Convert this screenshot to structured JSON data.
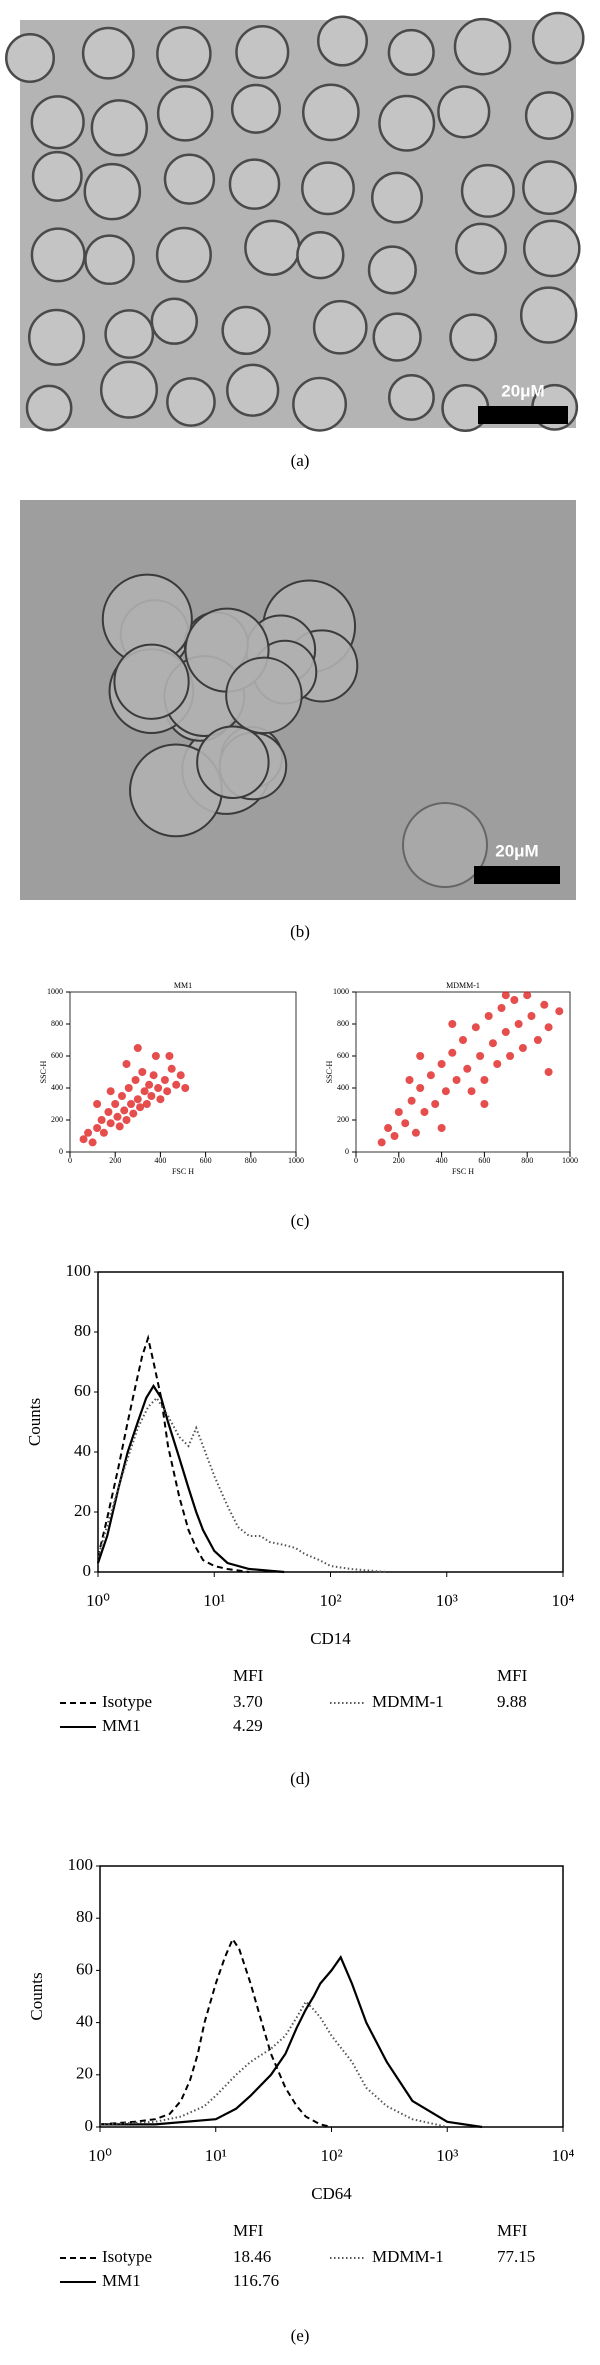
{
  "panel_labels": [
    "(a)",
    "(b)",
    "(c)",
    "(d)",
    "(e)"
  ],
  "scale_bars": [
    "20μM",
    "20μM"
  ],
  "chart_data": [
    {
      "type": "scatter",
      "title": "MM1",
      "xlabel": "FSC H",
      "ylabel": "SSC-H",
      "color": "#e02020",
      "x": [
        60,
        80,
        100,
        120,
        140,
        150,
        170,
        180,
        200,
        210,
        220,
        230,
        240,
        250,
        260,
        270,
        280,
        290,
        300,
        310,
        320,
        330,
        340,
        350,
        360,
        370,
        380,
        390,
        400,
        420,
        430,
        450,
        470,
        490,
        510,
        250,
        180,
        300,
        120,
        440
      ],
      "values": [
        80,
        120,
        60,
        150,
        200,
        120,
        250,
        180,
        300,
        220,
        160,
        350,
        260,
        200,
        400,
        300,
        240,
        450,
        330,
        280,
        500,
        380,
        300,
        420,
        350,
        480,
        600,
        400,
        330,
        450,
        380,
        520,
        420,
        480,
        400,
        550,
        380,
        650,
        300,
        600
      ],
      "xlim": [
        0,
        1000
      ],
      "ylim": [
        0,
        1000
      ],
      "xticks": [
        0,
        200,
        400,
        600,
        800,
        1000
      ],
      "yticks": [
        0,
        200,
        400,
        600,
        800,
        1000
      ]
    },
    {
      "type": "scatter",
      "title": "MDMM-1",
      "xlabel": "FSC H",
      "ylabel": "SSC-H",
      "color": "#e02020",
      "x": [
        120,
        150,
        180,
        200,
        230,
        260,
        280,
        300,
        320,
        350,
        370,
        400,
        420,
        450,
        470,
        500,
        520,
        540,
        560,
        580,
        600,
        620,
        640,
        660,
        680,
        700,
        720,
        740,
        760,
        780,
        800,
        820,
        850,
        880,
        900,
        950,
        300,
        250,
        450,
        900,
        700,
        400,
        600
      ],
      "values": [
        60,
        150,
        100,
        250,
        180,
        320,
        120,
        400,
        250,
        480,
        300,
        550,
        380,
        620,
        450,
        700,
        520,
        380,
        780,
        600,
        450,
        850,
        680,
        550,
        900,
        750,
        600,
        950,
        800,
        650,
        980,
        850,
        700,
        920,
        780,
        880,
        600,
        450,
        800,
        500,
        980,
        150,
        300
      ],
      "xlim": [
        0,
        1000
      ],
      "ylim": [
        0,
        1000
      ],
      "xticks": [
        0,
        200,
        400,
        600,
        800,
        1000
      ],
      "yticks": [
        0,
        200,
        400,
        600,
        800,
        1000
      ]
    },
    {
      "type": "line",
      "xlabel": "CD14",
      "ylabel": "Counts",
      "log_x": true,
      "legend_header": "MFI",
      "xlim": [
        1,
        10000
      ],
      "ylim": [
        0,
        100
      ],
      "xticks": [
        {
          "value": 1,
          "label": "10⁰"
        },
        {
          "value": 10,
          "label": "10¹"
        },
        {
          "value": 100,
          "label": "10²"
        },
        {
          "value": 1000,
          "label": "10³"
        },
        {
          "value": 10000,
          "label": "10⁴"
        }
      ],
      "yticks": [
        0,
        20,
        40,
        60,
        80,
        100
      ],
      "series": [
        {
          "name": "Isotype",
          "mfi": "3.70",
          "style": "dashed",
          "color": "#000000",
          "x": [
            1,
            1.2,
            1.5,
            1.8,
            2.1,
            2.4,
            2.7,
            3,
            3.5,
            4,
            5,
            6,
            7,
            8,
            10,
            13,
            20
          ],
          "values": [
            5,
            18,
            35,
            50,
            62,
            72,
            78,
            70,
            58,
            42,
            25,
            14,
            8,
            4,
            2,
            1,
            0
          ]
        },
        {
          "name": "MM1",
          "mfi": "4.29",
          "style": "solid",
          "color": "#000000",
          "x": [
            1,
            1.2,
            1.5,
            1.8,
            2.2,
            2.6,
            3,
            3.5,
            4,
            5,
            6,
            7,
            8,
            10,
            13,
            20,
            40
          ],
          "values": [
            3,
            12,
            28,
            40,
            50,
            58,
            62,
            58,
            50,
            38,
            28,
            20,
            14,
            7,
            3,
            1,
            0
          ]
        },
        {
          "name": "MDMM-1",
          "mfi": "9.88",
          "style": "dotted",
          "color": "#555555",
          "x": [
            1,
            1.3,
            1.7,
            2.2,
            2.7,
            3.2,
            4,
            5,
            6,
            7,
            8,
            10,
            13,
            16,
            20,
            25,
            30,
            40,
            50,
            60,
            80,
            100,
            150,
            300
          ],
          "values": [
            5,
            20,
            35,
            48,
            55,
            58,
            52,
            45,
            42,
            48,
            42,
            32,
            22,
            15,
            12,
            12,
            10,
            9,
            8,
            6,
            4,
            2,
            1,
            0
          ]
        }
      ]
    },
    {
      "type": "line",
      "xlabel": "CD64",
      "ylabel": "Counts",
      "log_x": true,
      "legend_header": "MFI",
      "xlim": [
        1,
        10000
      ],
      "ylim": [
        0,
        100
      ],
      "xticks": [
        {
          "value": 1,
          "label": "10⁰"
        },
        {
          "value": 10,
          "label": "10¹"
        },
        {
          "value": 100,
          "label": "10²"
        },
        {
          "value": 1000,
          "label": "10³"
        },
        {
          "value": 10000,
          "label": "10⁴"
        }
      ],
      "yticks": [
        0,
        20,
        40,
        60,
        80,
        100
      ],
      "series": [
        {
          "name": "Isotype",
          "mfi": "18.46",
          "style": "dashed",
          "color": "#000000",
          "x": [
            1,
            2,
            3,
            4,
            5,
            6,
            7,
            8,
            10,
            12,
            14,
            16,
            20,
            25,
            30,
            40,
            50,
            60,
            80,
            100
          ],
          "values": [
            1,
            2,
            3,
            5,
            10,
            18,
            28,
            40,
            55,
            65,
            72,
            68,
            55,
            40,
            28,
            15,
            8,
            4,
            1,
            0
          ]
        },
        {
          "name": "MM1",
          "mfi": "116.76",
          "style": "solid",
          "color": "#000000",
          "x": [
            1,
            3,
            10,
            15,
            20,
            30,
            40,
            50,
            60,
            70,
            80,
            100,
            120,
            150,
            200,
            300,
            500,
            1000,
            2000
          ],
          "values": [
            1,
            1,
            3,
            7,
            12,
            20,
            28,
            38,
            45,
            50,
            55,
            60,
            65,
            55,
            40,
            25,
            10,
            2,
            0
          ]
        },
        {
          "name": "MDMM-1",
          "mfi": "77.15",
          "style": "dotted",
          "color": "#555555",
          "x": [
            1,
            3,
            5,
            8,
            10,
            15,
            20,
            30,
            40,
            50,
            60,
            70,
            80,
            100,
            150,
            200,
            300,
            500,
            1000
          ],
          "values": [
            1,
            2,
            4,
            8,
            12,
            20,
            25,
            30,
            35,
            42,
            48,
            45,
            42,
            35,
            25,
            15,
            8,
            3,
            0
          ]
        }
      ]
    }
  ]
}
